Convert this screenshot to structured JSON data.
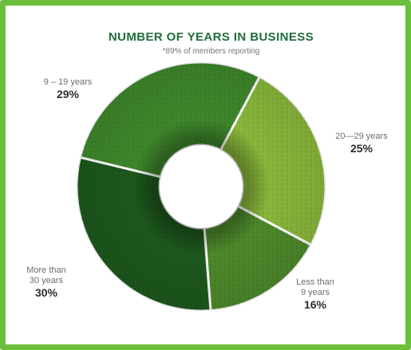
{
  "title": "NUMBER OF YEARS IN BUSINESS",
  "subtitle": "*89% of members reporting",
  "chart_data": {
    "type": "pie",
    "title": "NUMBER OF YEARS IN BUSINESS",
    "subtitle": "*89% of members reporting",
    "donut": true,
    "categories": [
      "20—29 years",
      "Less than 9 years",
      "More than 30 years",
      "9 – 19 years"
    ],
    "values": [
      25,
      16,
      30,
      29
    ],
    "unit": "%",
    "labels": [
      {
        "name_lines": [
          "20—29 years"
        ],
        "pct": "25%"
      },
      {
        "name_lines": [
          "Less than",
          "9 years"
        ],
        "pct": "16%"
      },
      {
        "name_lines": [
          "More than",
          "30 years"
        ],
        "pct": "30%"
      },
      {
        "name_lines": [
          "9 – 19 years"
        ],
        "pct": "29%"
      }
    ],
    "colors": [
      "#8cbb3c",
      "#4f8c2c",
      "#1e5a1e",
      "#3f8a2c"
    ]
  }
}
